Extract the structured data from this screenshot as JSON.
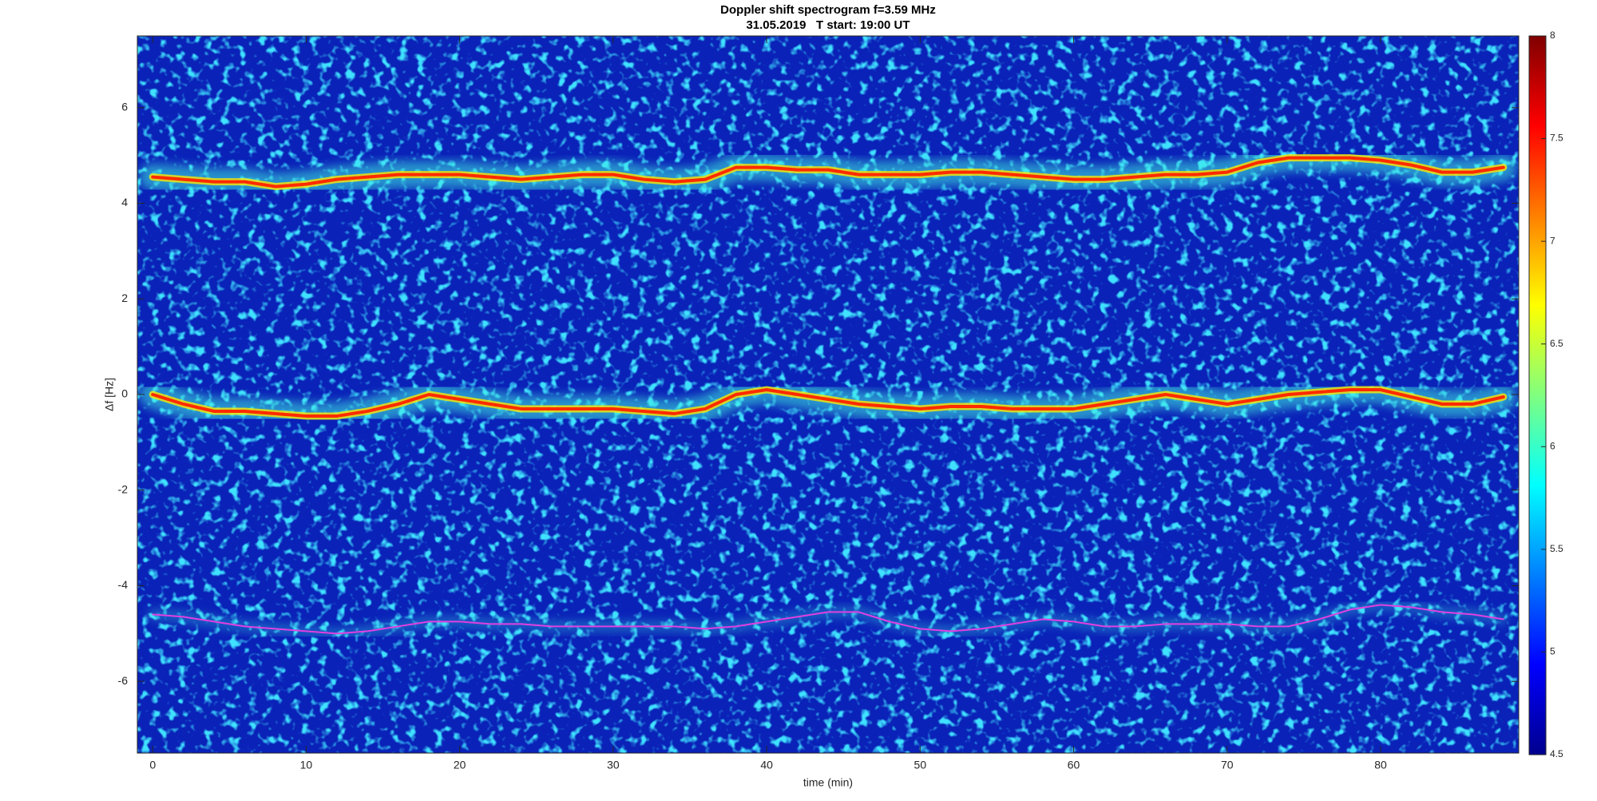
{
  "chart_data": {
    "type": "spectrogram",
    "title": "Doppler shift spectrogram f=3.59 MHz",
    "subtitle": "31.05.2019   T start: 19:00 UT",
    "x_label": "time (min)",
    "y_label": "Δf [Hz]",
    "xlim": [
      -1,
      89
    ],
    "xticks": [
      0,
      10,
      20,
      30,
      40,
      50,
      60,
      70,
      80
    ],
    "ylim": [
      -7.5,
      7.5
    ],
    "yticks": [
      -6,
      -4,
      -2,
      0,
      2,
      4,
      6
    ],
    "colormap": "jet",
    "colorbar": {
      "lim": [
        4.5,
        8
      ],
      "ticks": [
        4.5,
        5,
        5.5,
        6,
        6.5,
        7,
        7.5,
        8
      ]
    },
    "x": [
      0,
      2,
      4,
      6,
      8,
      10,
      12,
      14,
      16,
      18,
      20,
      22,
      24,
      26,
      28,
      30,
      32,
      34,
      36,
      38,
      40,
      42,
      44,
      46,
      48,
      50,
      52,
      54,
      56,
      58,
      60,
      62,
      64,
      66,
      68,
      70,
      72,
      74,
      76,
      78,
      80,
      82,
      84,
      86,
      88
    ],
    "series": [
      {
        "color": "#ff2a00",
        "values": [
          4.55,
          4.5,
          4.45,
          4.45,
          4.35,
          4.4,
          4.5,
          4.55,
          4.6,
          4.6,
          4.6,
          4.55,
          4.5,
          4.55,
          4.6,
          4.6,
          4.5,
          4.45,
          4.5,
          4.75,
          4.75,
          4.7,
          4.7,
          4.6,
          4.6,
          4.6,
          4.65,
          4.65,
          4.6,
          4.55,
          4.5,
          4.5,
          4.55,
          4.6,
          4.6,
          4.65,
          4.85,
          4.95,
          4.95,
          4.95,
          4.9,
          4.8,
          4.65,
          4.65,
          4.75
        ]
      },
      {
        "color": "#ff2a00",
        "values": [
          0,
          -0.2,
          -0.35,
          -0.35,
          -0.4,
          -0.45,
          -0.45,
          -0.35,
          -0.2,
          0,
          -0.1,
          -0.2,
          -0.3,
          -0.3,
          -0.3,
          -0.3,
          -0.35,
          -0.4,
          -0.3,
          0,
          0.1,
          0,
          -0.1,
          -0.2,
          -0.25,
          -0.3,
          -0.25,
          -0.25,
          -0.3,
          -0.3,
          -0.3,
          -0.2,
          -0.1,
          0,
          -0.1,
          -0.2,
          -0.1,
          0,
          0.05,
          0.1,
          0.1,
          -0.05,
          -0.2,
          -0.2,
          -0.05
        ]
      },
      {
        "color": "#e040e0",
        "values": [
          -4.6,
          -4.65,
          -4.75,
          -4.85,
          -4.9,
          -4.95,
          -5,
          -4.95,
          -4.85,
          -4.75,
          -4.75,
          -4.8,
          -4.8,
          -4.85,
          -4.85,
          -4.85,
          -4.85,
          -4.85,
          -4.9,
          -4.85,
          -4.75,
          -4.65,
          -4.55,
          -4.55,
          -4.75,
          -4.9,
          -4.95,
          -4.9,
          -4.8,
          -4.7,
          -4.75,
          -4.85,
          -4.85,
          -4.8,
          -4.8,
          -4.8,
          -4.85,
          -4.85,
          -4.7,
          -4.5,
          -4.4,
          -4.45,
          -4.55,
          -4.6,
          -4.7
        ]
      }
    ]
  }
}
